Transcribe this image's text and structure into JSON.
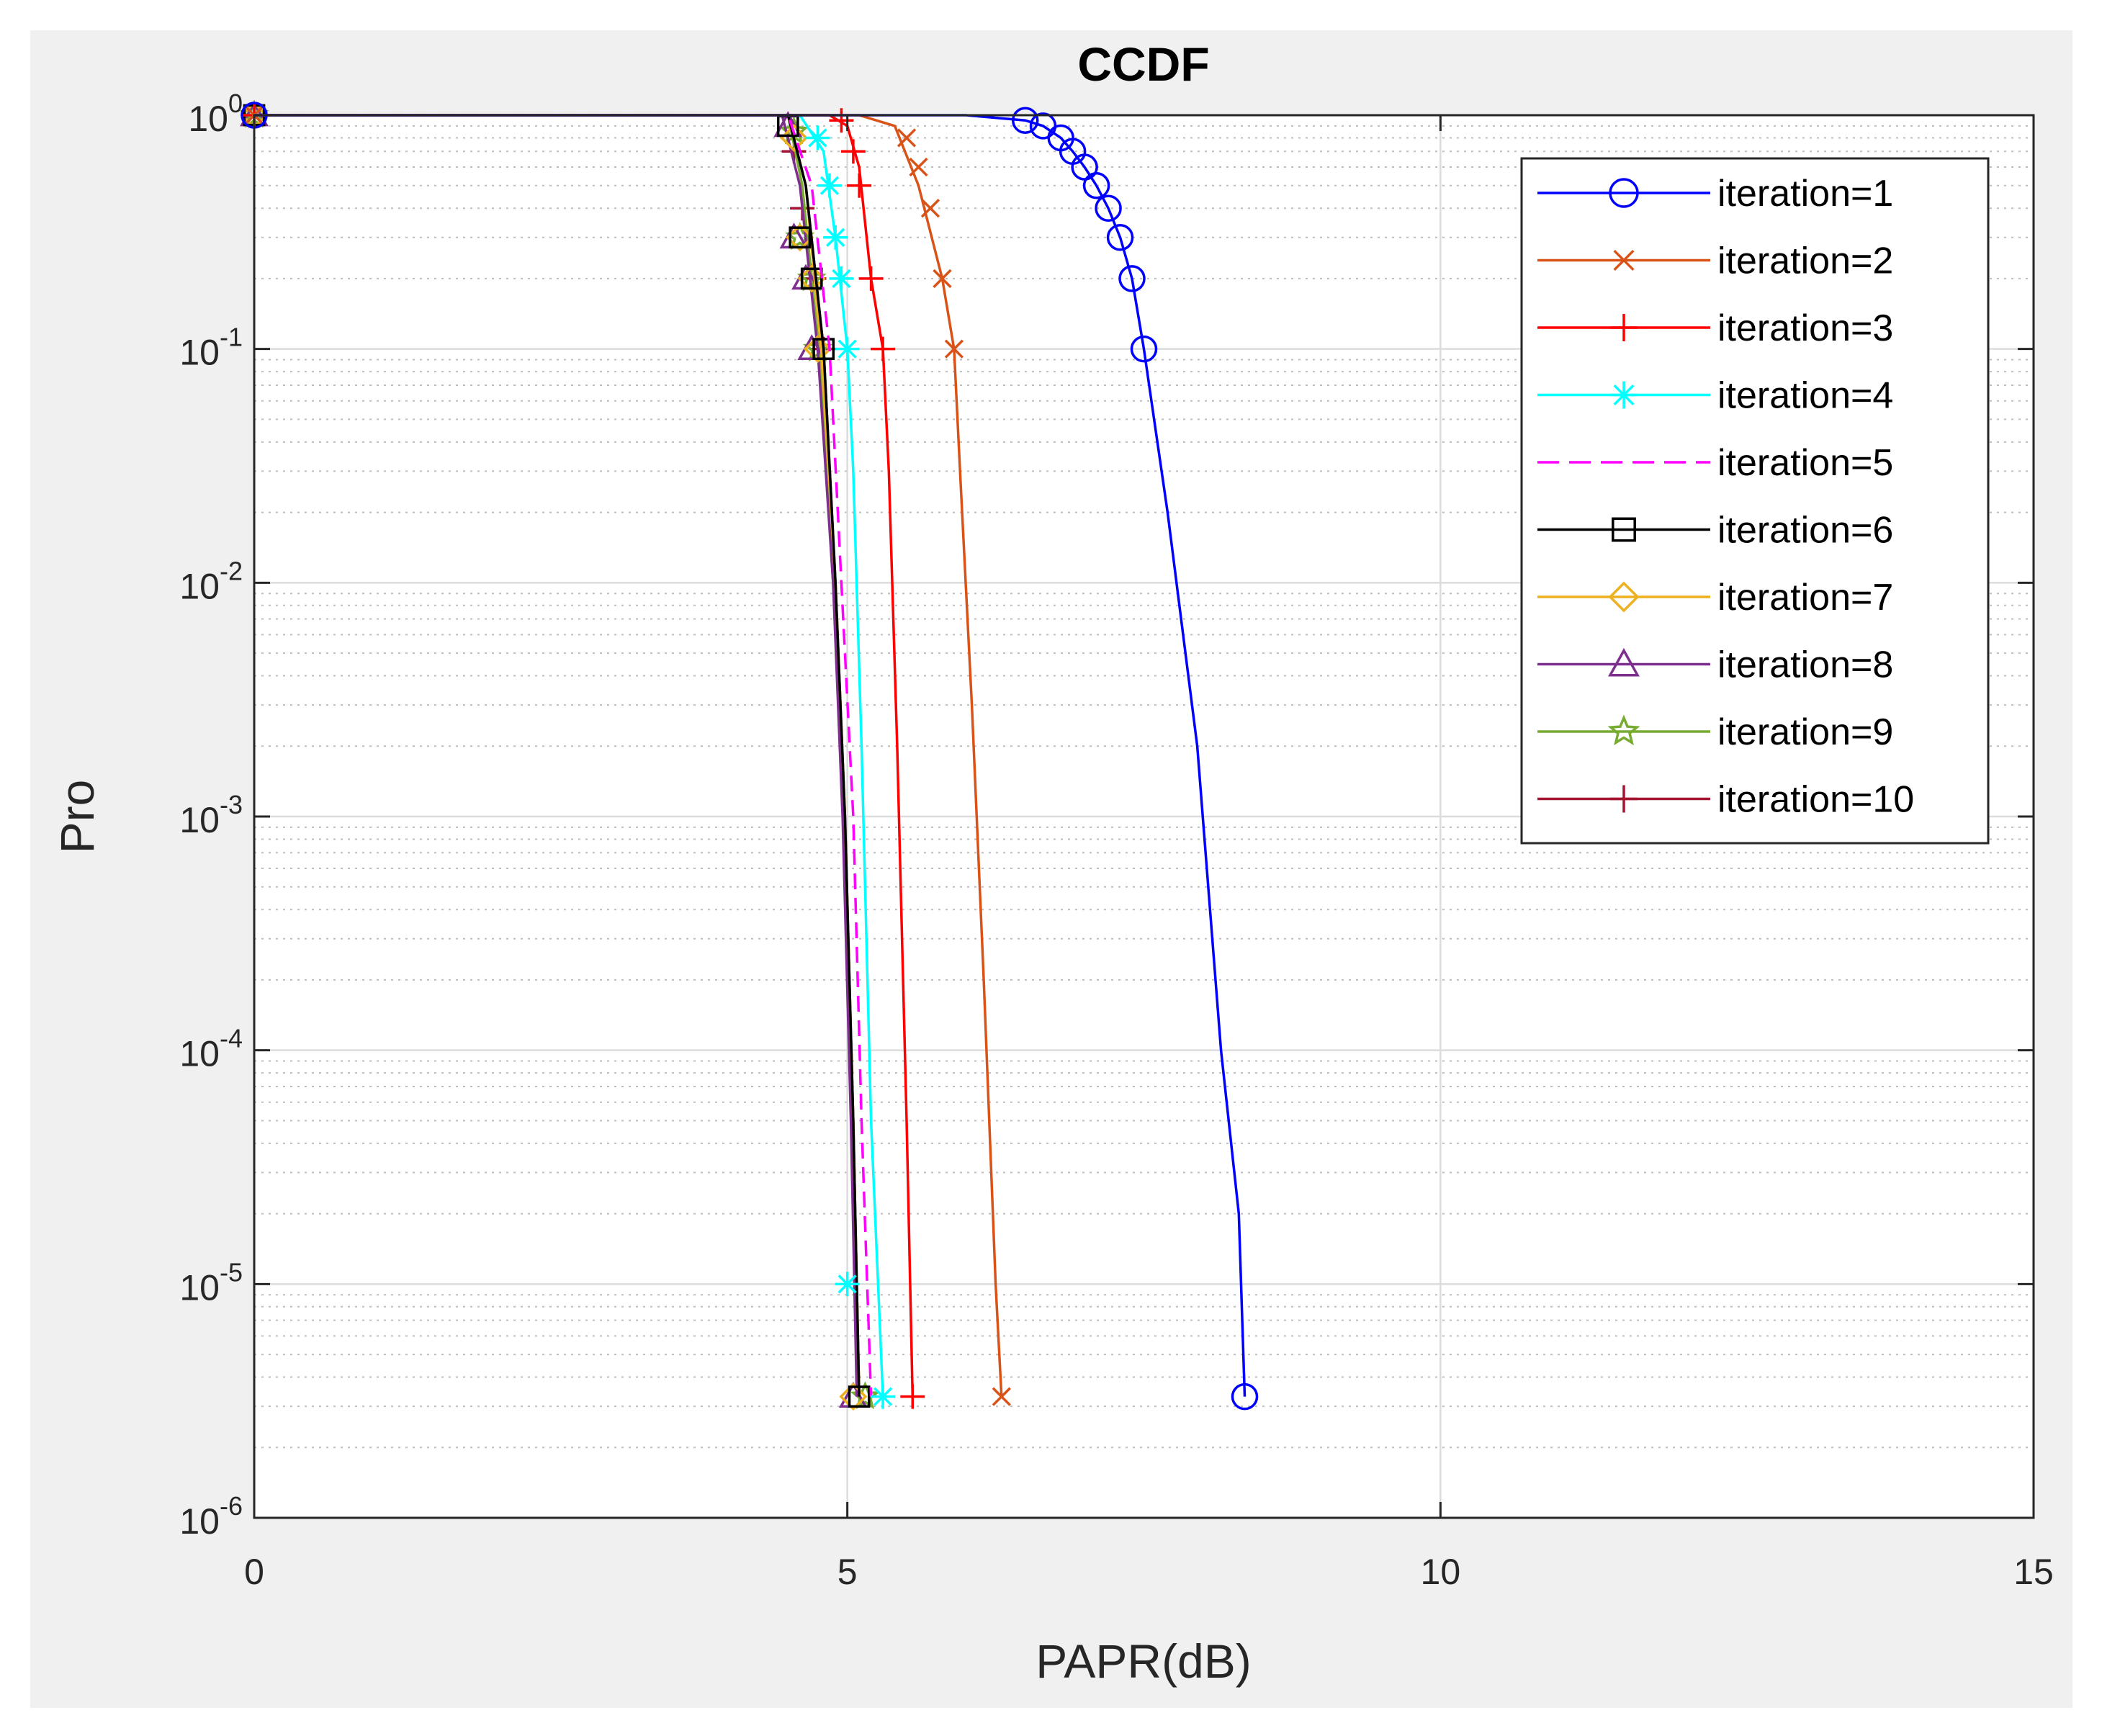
{
  "chart_data": {
    "type": "line",
    "title": "CCDF",
    "xlabel": "PAPR(dB)",
    "ylabel": "Pro",
    "xlim": [
      0,
      15
    ],
    "ylim": [
      1e-06,
      1
    ],
    "yscale": "log",
    "grid": "on (major + minor dotted)",
    "legend_position": "top-right",
    "x_ticks": [
      {
        "value": 0,
        "label": "0"
      },
      {
        "value": 5,
        "label": "5"
      },
      {
        "value": 10,
        "label": "10"
      },
      {
        "value": 15,
        "label": "15"
      }
    ],
    "y_ticks": [
      {
        "value": 1,
        "base": "10",
        "exp": "0"
      },
      {
        "value": 0.1,
        "base": "10",
        "exp": "-1"
      },
      {
        "value": 0.01,
        "base": "10",
        "exp": "-2"
      },
      {
        "value": 0.001,
        "base": "10",
        "exp": "-3"
      },
      {
        "value": 0.0001,
        "base": "10",
        "exp": "-4"
      },
      {
        "value": 1e-05,
        "base": "10",
        "exp": "-5"
      },
      {
        "value": 1e-06,
        "base": "10",
        "exp": "-6"
      }
    ],
    "series": [
      {
        "name": "iteration=1",
        "color": "#0000ff",
        "marker": "circle",
        "dash": "solid",
        "x": [
          0,
          6.0,
          6.5,
          6.65,
          6.8,
          6.9,
          7.0,
          7.1,
          7.2,
          7.3,
          7.4,
          7.5,
          7.7,
          7.95,
          8.15,
          8.3,
          8.35
        ],
        "y": [
          1,
          1,
          0.95,
          0.9,
          0.8,
          0.7,
          0.6,
          0.5,
          0.4,
          0.3,
          0.2,
          0.1,
          0.02,
          0.002,
          0.0001,
          2e-05,
          3.3e-06
        ],
        "marker_x": [
          0,
          6.5,
          6.65,
          6.8,
          6.9,
          7.0,
          7.1,
          7.2,
          7.3,
          7.4,
          7.5,
          8.35
        ],
        "marker_y": [
          1,
          0.95,
          0.9,
          0.8,
          0.7,
          0.6,
          0.5,
          0.4,
          0.3,
          0.2,
          0.1,
          3.3e-06
        ]
      },
      {
        "name": "iteration=2",
        "color": "#d95319",
        "marker": "x",
        "dash": "solid",
        "x": [
          0,
          5.1,
          5.4,
          5.6,
          5.8,
          5.9,
          5.95,
          6.05,
          6.15,
          6.25,
          6.3
        ],
        "y": [
          1,
          1,
          0.9,
          0.5,
          0.2,
          0.1,
          0.03,
          0.003,
          0.0002,
          1e-05,
          3.3e-06
        ],
        "marker_x": [
          0,
          5.5,
          5.6,
          5.7,
          5.8,
          5.9,
          6.3
        ],
        "marker_y": [
          1,
          0.8,
          0.6,
          0.4,
          0.2,
          0.1,
          3.3e-06
        ]
      },
      {
        "name": "iteration=3",
        "color": "#ff0000",
        "marker": "plus",
        "dash": "solid",
        "x": [
          0,
          4.85,
          5.0,
          5.1,
          5.2,
          5.3,
          5.35,
          5.42,
          5.5,
          5.55
        ],
        "y": [
          1,
          1,
          0.9,
          0.6,
          0.2,
          0.1,
          0.03,
          0.002,
          5e-05,
          3.3e-06
        ],
        "marker_x": [
          0,
          4.95,
          5.05,
          5.1,
          5.2,
          5.3,
          5.55
        ],
        "marker_y": [
          1,
          0.95,
          0.7,
          0.5,
          0.2,
          0.1,
          3.3e-06
        ]
      },
      {
        "name": "iteration=4",
        "color": "#00ffff",
        "marker": "asterisk",
        "dash": "solid",
        "x": [
          0,
          4.6,
          4.8,
          4.9,
          5.0,
          5.05,
          5.12,
          5.2,
          5.3
        ],
        "y": [
          1,
          1,
          0.7,
          0.3,
          0.1,
          0.03,
          0.002,
          5e-05,
          3.3e-06
        ],
        "marker_x": [
          0,
          4.75,
          4.85,
          4.9,
          4.95,
          5.0,
          5.0,
          5.3
        ],
        "marker_y": [
          1,
          0.8,
          0.5,
          0.3,
          0.2,
          0.1,
          1e-05,
          3.3e-06
        ]
      },
      {
        "name": "iteration=5",
        "color": "#ff00ff",
        "marker": "none",
        "dash": "dashed",
        "x": [
          0,
          4.5,
          4.7,
          4.85,
          4.95,
          5.05,
          5.12,
          5.2
        ],
        "y": [
          1,
          1,
          0.5,
          0.1,
          0.01,
          0.001,
          5e-05,
          3.3e-06
        ],
        "marker_x": [],
        "marker_y": []
      },
      {
        "name": "iteration=6",
        "color": "#000000",
        "marker": "square",
        "dash": "solid",
        "x": [
          0,
          4.5,
          4.65,
          4.8,
          4.9,
          4.98,
          5.05,
          5.1
        ],
        "y": [
          1,
          1,
          0.5,
          0.1,
          0.01,
          0.001,
          5e-05,
          3.3e-06
        ],
        "marker_x": [
          0,
          4.5,
          4.6,
          4.7,
          4.8,
          5.1
        ],
        "marker_y": [
          1,
          0.9,
          0.3,
          0.2,
          0.1,
          3.3e-06
        ]
      },
      {
        "name": "iteration=7",
        "color": "#edb120",
        "marker": "diamond",
        "dash": "solid",
        "x": [
          0,
          4.5,
          4.65,
          4.78,
          4.9,
          4.98,
          5.05,
          5.1
        ],
        "y": [
          1,
          1,
          0.5,
          0.1,
          0.01,
          0.001,
          5e-05,
          3.3e-06
        ],
        "marker_x": [
          0,
          4.55,
          4.6,
          4.7,
          4.75,
          5.05
        ],
        "marker_y": [
          1,
          0.8,
          0.3,
          0.2,
          0.1,
          3.3e-06
        ]
      },
      {
        "name": "iteration=8",
        "color": "#7e2f8e",
        "marker": "triangle",
        "dash": "solid",
        "x": [
          0,
          4.45,
          4.6,
          4.75,
          4.88,
          4.96,
          5.03,
          5.08
        ],
        "y": [
          1,
          1,
          0.5,
          0.1,
          0.01,
          0.001,
          5e-05,
          3.3e-06
        ],
        "marker_x": [
          0,
          4.5,
          4.55,
          4.65,
          4.7,
          5.05
        ],
        "marker_y": [
          1,
          0.9,
          0.3,
          0.2,
          0.1,
          3.3e-06
        ]
      },
      {
        "name": "iteration=9",
        "color": "#77ac30",
        "marker": "pentagram",
        "dash": "solid",
        "x": [
          0,
          4.5,
          4.62,
          4.76,
          4.88,
          4.97,
          5.04,
          5.1
        ],
        "y": [
          1,
          1,
          0.5,
          0.1,
          0.01,
          0.001,
          5e-05,
          3.3e-06
        ],
        "marker_x": [
          0,
          4.55,
          4.6,
          4.7,
          4.75,
          5.15
        ],
        "marker_y": [
          1,
          0.85,
          0.3,
          0.2,
          0.1,
          3.3e-06
        ]
      },
      {
        "name": "iteration=10",
        "color": "#a2142f",
        "marker": "plus",
        "dash": "solid",
        "x": [
          0,
          4.5,
          4.65,
          4.8,
          4.9,
          4.98,
          5.05,
          5.1
        ],
        "y": [
          1,
          1,
          0.5,
          0.1,
          0.01,
          0.001,
          5e-05,
          3.3e-06
        ],
        "marker_x": [
          0,
          4.55,
          4.62,
          4.72,
          4.8
        ],
        "marker_y": [
          1,
          0.7,
          0.4,
          0.2,
          0.1
        ]
      }
    ]
  }
}
